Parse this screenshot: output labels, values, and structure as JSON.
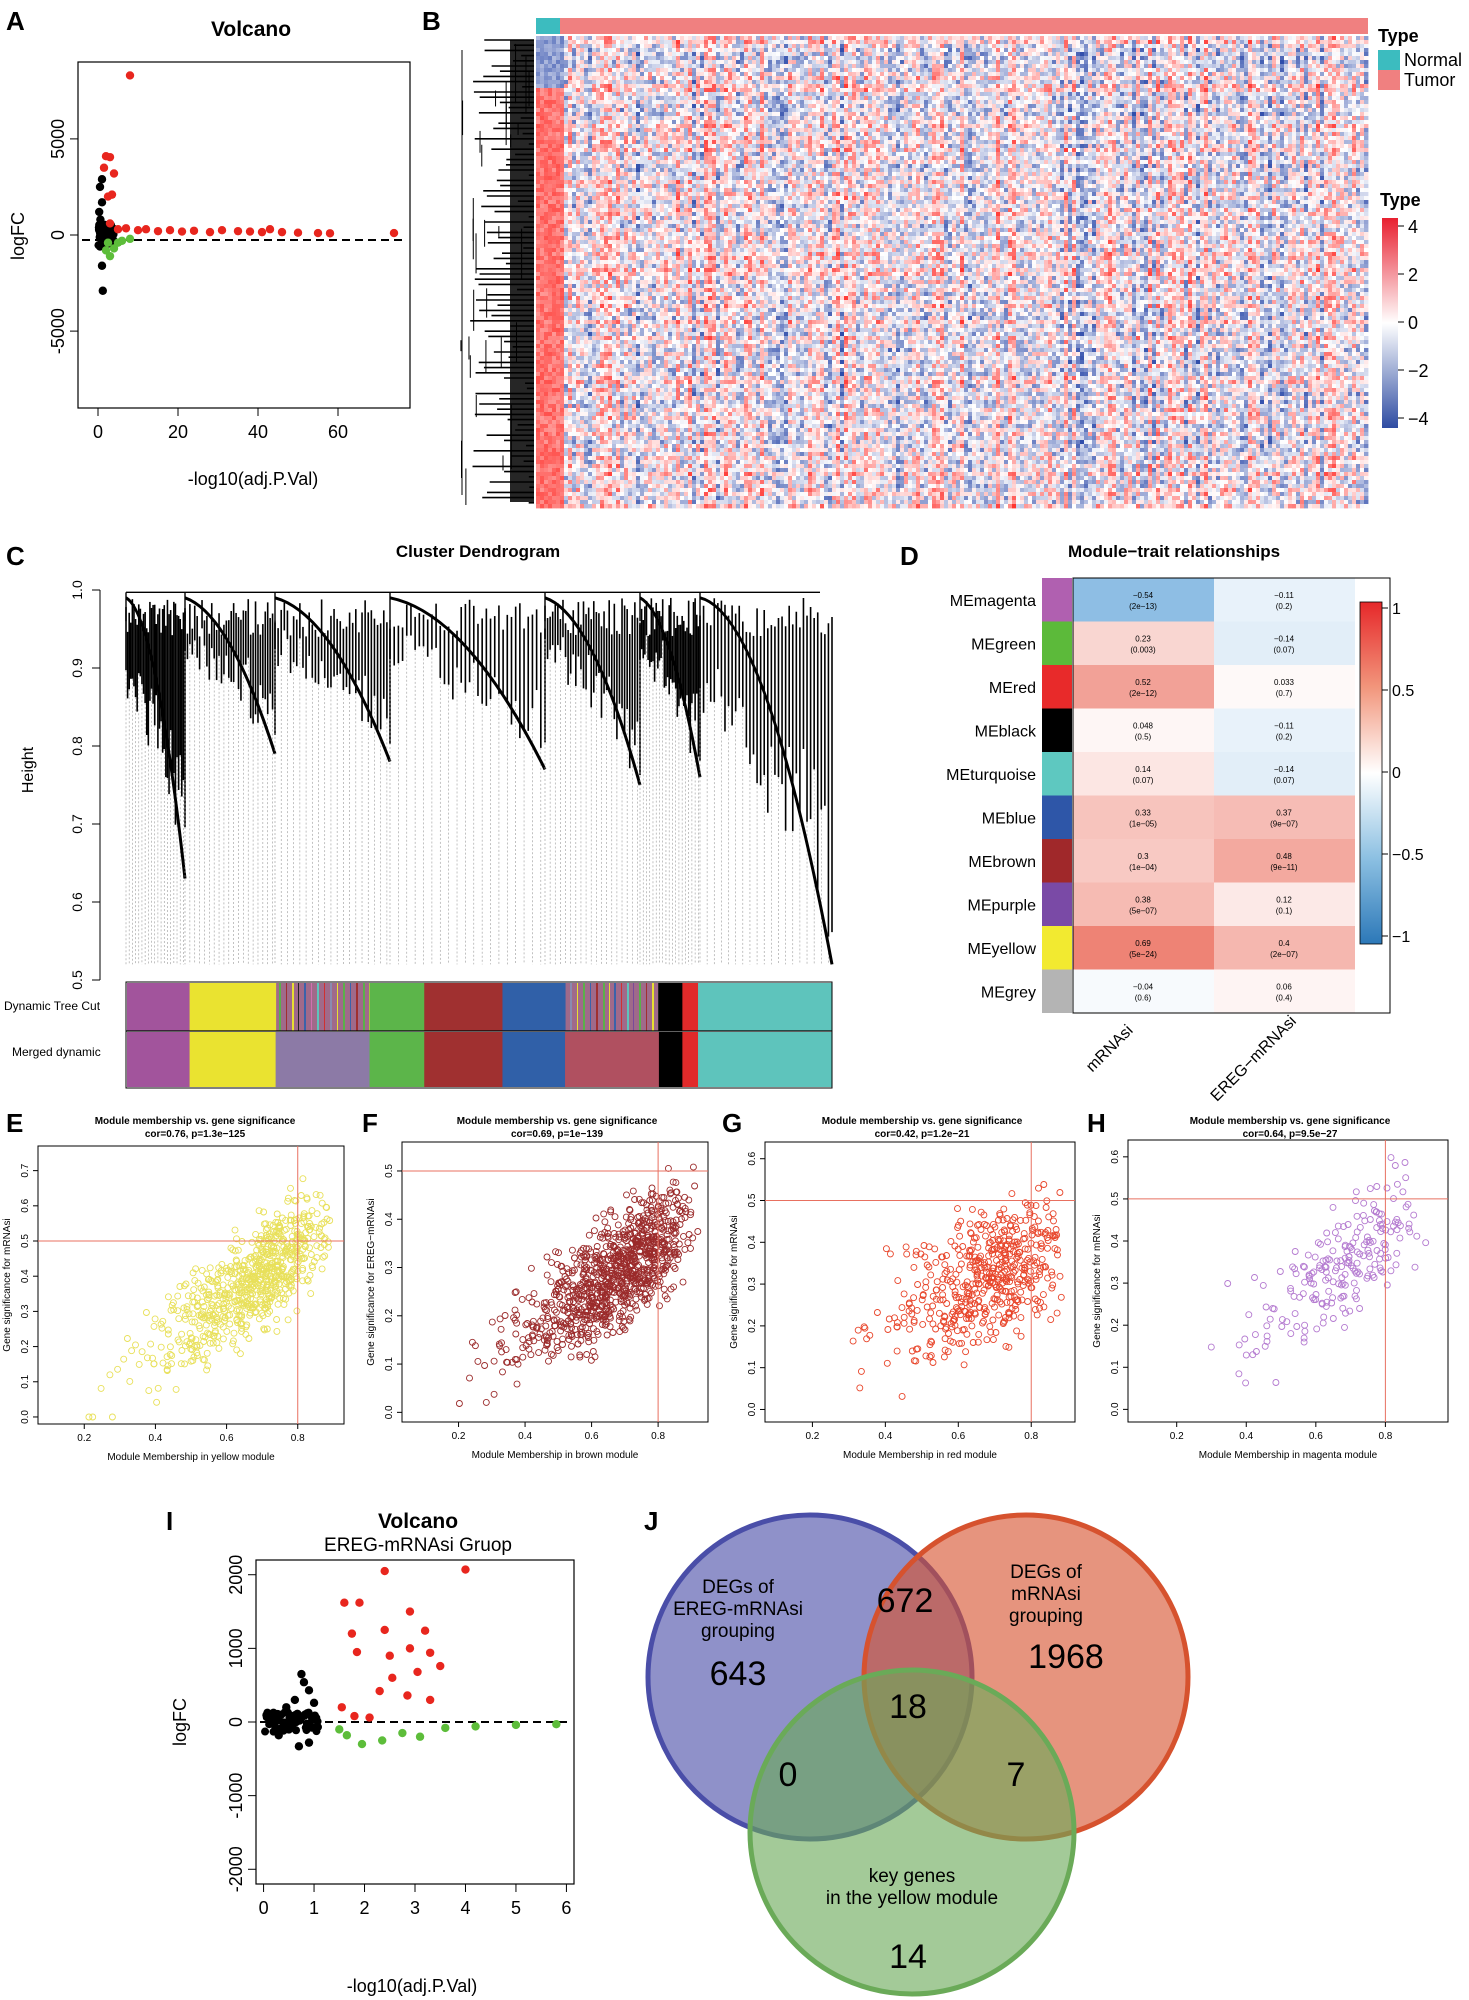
{
  "panel_labels": [
    "A",
    "B",
    "C",
    "D",
    "E",
    "F",
    "G",
    "H",
    "I",
    "J"
  ],
  "colors": {
    "red": "#e8261e",
    "green": "#5dbd3a",
    "black": "#000000",
    "normal": "#3cbcbf",
    "tumor": "#f08080",
    "heat_low": "#2b4fa2",
    "heat_mid": "#ffffff",
    "heat_high": "#e83030",
    "scatter_yellow": "#e8e05a",
    "scatter_brown": "#9b2b2b",
    "scatter_red": "#e8452a",
    "scatter_magenta": "#b47ad0",
    "venn_blue": "#4a4ea8",
    "venn_orange": "#d6522e",
    "venn_green": "#6aaa58"
  },
  "chart_data": [
    {
      "id": "A",
      "type": "scatter",
      "title": "Volcano",
      "xlabel": "-log10(adj.P.Val)",
      "ylabel": "logFC",
      "xlim": [
        -5,
        78
      ],
      "ylim": [
        -9000,
        9000
      ],
      "xticks": [
        "0",
        "20",
        "40",
        "60"
      ],
      "xtick_values": [
        0,
        20,
        40,
        60
      ],
      "yticks": [
        "-5000",
        "0",
        "5000"
      ],
      "ytick_values": [
        -5000,
        0,
        5000
      ],
      "points": [
        {
          "x": 8,
          "y": 8300,
          "c": "red"
        },
        {
          "x": 2,
          "y": 4100,
          "c": "red"
        },
        {
          "x": 3,
          "y": 4050,
          "c": "red"
        },
        {
          "x": 1.5,
          "y": 3500,
          "c": "red"
        },
        {
          "x": 4,
          "y": 3200,
          "c": "red"
        },
        {
          "x": 2.5,
          "y": 2000,
          "c": "red"
        },
        {
          "x": 3.5,
          "y": 2100,
          "c": "red"
        },
        {
          "x": 1,
          "y": 2900,
          "c": "black"
        },
        {
          "x": 0.5,
          "y": 2500,
          "c": "black"
        },
        {
          "x": 1,
          "y": 1700,
          "c": "black"
        },
        {
          "x": 0.3,
          "y": 1200,
          "c": "black"
        },
        {
          "x": 0.6,
          "y": 800,
          "c": "black"
        },
        {
          "x": 1,
          "y": -1600,
          "c": "black"
        },
        {
          "x": 1.2,
          "y": -2900,
          "c": "black"
        },
        {
          "x": 0.5,
          "y": -600,
          "c": "black"
        },
        {
          "x": 2,
          "y": -800,
          "c": "green"
        },
        {
          "x": 3,
          "y": -1100,
          "c": "green"
        },
        {
          "x": 4,
          "y": -700,
          "c": "green"
        },
        {
          "x": 5,
          "y": -400,
          "c": "green"
        },
        {
          "x": 2.5,
          "y": -400,
          "c": "green"
        },
        {
          "x": 6,
          "y": -300,
          "c": "green"
        },
        {
          "x": 8,
          "y": -200,
          "c": "green"
        },
        {
          "x": 3,
          "y": 600,
          "c": "red"
        },
        {
          "x": 5,
          "y": 300,
          "c": "red"
        },
        {
          "x": 7,
          "y": 350,
          "c": "red"
        },
        {
          "x": 10,
          "y": 250,
          "c": "red"
        },
        {
          "x": 12,
          "y": 300,
          "c": "red"
        },
        {
          "x": 15,
          "y": 200,
          "c": "red"
        },
        {
          "x": 18,
          "y": 250,
          "c": "red"
        },
        {
          "x": 21,
          "y": 180,
          "c": "red"
        },
        {
          "x": 24,
          "y": 220,
          "c": "red"
        },
        {
          "x": 28,
          "y": 150,
          "c": "red"
        },
        {
          "x": 31,
          "y": 250,
          "c": "red"
        },
        {
          "x": 35,
          "y": 200,
          "c": "red"
        },
        {
          "x": 38,
          "y": 180,
          "c": "red"
        },
        {
          "x": 41,
          "y": 150,
          "c": "red"
        },
        {
          "x": 43,
          "y": 300,
          "c": "red"
        },
        {
          "x": 46,
          "y": 150,
          "c": "red"
        },
        {
          "x": 50,
          "y": 120,
          "c": "red"
        },
        {
          "x": 55,
          "y": 100,
          "c": "red"
        },
        {
          "x": 58,
          "y": 90,
          "c": "red"
        },
        {
          "x": 74,
          "y": 100,
          "c": "red"
        }
      ]
    },
    {
      "id": "B",
      "type": "heatmap",
      "legend_title": "Type",
      "legend_items": [
        "Normal",
        "Tumor"
      ],
      "scale_title": "Type",
      "scale_ticks": [
        "4",
        "2",
        "0",
        "−2",
        "−4"
      ]
    },
    {
      "id": "C",
      "type": "dendrogram",
      "title": "Cluster Dendrogram",
      "ylabel": "Height",
      "ylim": [
        0.5,
        1.0
      ],
      "yticks": [
        "1.0",
        "0.9",
        "0.8",
        "0.7",
        "0.6",
        "0.5"
      ],
      "row_labels": [
        "Dynamic Tree Cut",
        "Merged dynamic"
      ],
      "merged_modules": [
        {
          "color": "#a2549c",
          "w": 8
        },
        {
          "color": "#eae330",
          "w": 11
        },
        {
          "color": "#8c7aa6",
          "w": 12
        },
        {
          "color": "#5cb54a",
          "w": 7
        },
        {
          "color": "#a03030",
          "w": 6
        },
        {
          "color": "#a03030",
          "w": 4
        },
        {
          "color": "#3060a8",
          "w": 8
        },
        {
          "color": "#b05060",
          "w": 12
        },
        {
          "color": "#000000",
          "w": 3
        },
        {
          "color": "#e02a2a",
          "w": 2
        },
        {
          "color": "#5ec4bc",
          "w": 17
        }
      ]
    },
    {
      "id": "D",
      "type": "heatmap",
      "title": "Module−trait relationships",
      "columns": [
        "mRNAsi",
        "EREG−mRNAsi"
      ],
      "scale_ticks": [
        "1",
        "0.5",
        "0",
        "−0.5",
        "−1"
      ],
      "rows": [
        {
          "module": "MEmagenta",
          "color": "#b060b0",
          "cells": [
            {
              "v": "−0.54",
              "p": "(2e−13)",
              "r": -0.54
            },
            {
              "v": "−0.11",
              "p": "(0.2)",
              "r": -0.11
            }
          ]
        },
        {
          "module": "MEgreen",
          "color": "#5cba3a",
          "cells": [
            {
              "v": "0.23",
              "p": "(0.003)",
              "r": 0.23
            },
            {
              "v": "−0.14",
              "p": "(0.07)",
              "r": -0.14
            }
          ]
        },
        {
          "module": "MEred",
          "color": "#e82a2a",
          "cells": [
            {
              "v": "0.52",
              "p": "(2e−12)",
              "r": 0.52
            },
            {
              "v": "0.033",
              "p": "(0.7)",
              "r": 0.033
            }
          ]
        },
        {
          "module": "MEblack",
          "color": "#000000",
          "cells": [
            {
              "v": "0.048",
              "p": "(0.5)",
              "r": 0.048
            },
            {
              "v": "−0.11",
              "p": "(0.2)",
              "r": -0.11
            }
          ]
        },
        {
          "module": "MEturquoise",
          "color": "#5ec8c0",
          "cells": [
            {
              "v": "0.14",
              "p": "(0.07)",
              "r": 0.14
            },
            {
              "v": "−0.14",
              "p": "(0.07)",
              "r": -0.14
            }
          ]
        },
        {
          "module": "MEblue",
          "color": "#2e56a8",
          "cells": [
            {
              "v": "0.33",
              "p": "(1e−05)",
              "r": 0.33
            },
            {
              "v": "0.37",
              "p": "(9e−07)",
              "r": 0.37
            }
          ]
        },
        {
          "module": "MEbrown",
          "color": "#a0282a",
          "cells": [
            {
              "v": "0.3",
              "p": "(1e−04)",
              "r": 0.3
            },
            {
              "v": "0.48",
              "p": "(9e−11)",
              "r": 0.48
            }
          ]
        },
        {
          "module": "MEpurple",
          "color": "#7a4aa6",
          "cells": [
            {
              "v": "0.38",
              "p": "(5e−07)",
              "r": 0.38
            },
            {
              "v": "0.12",
              "p": "(0.1)",
              "r": 0.12
            }
          ]
        },
        {
          "module": "MEyellow",
          "color": "#f2ea30",
          "cells": [
            {
              "v": "0.69",
              "p": "(5e−24)",
              "r": 0.69
            },
            {
              "v": "0.4",
              "p": "(2e−07)",
              "r": 0.4
            }
          ]
        },
        {
          "module": "MEgrey",
          "color": "#b4b4b4",
          "cells": [
            {
              "v": "−0.04",
              "p": "(0.6)",
              "r": -0.04
            },
            {
              "v": "0.06",
              "p": "(0.4)",
              "r": 0.06
            }
          ]
        }
      ]
    },
    {
      "id": "E",
      "type": "scatter",
      "title": "Module membership vs. gene significance",
      "subtitle": "cor=0.76, p=1.3e−125",
      "xlabel": "Module Membership in yellow module",
      "ylabel": "Gene significance for  mRNAsi",
      "xlim": [
        0.07,
        0.93
      ],
      "ylim": [
        -0.02,
        0.77
      ],
      "xticks": [
        0.2,
        0.4,
        0.6,
        0.8
      ],
      "yticks": [
        0.0,
        0.1,
        0.2,
        0.3,
        0.4,
        0.5,
        0.6,
        0.7
      ],
      "refline": {
        "x": 0.8,
        "y": 0.5
      },
      "color": "scatter_yellow",
      "cloud": {
        "n": 700,
        "x0": 0.12,
        "x1": 0.9,
        "slope": 0.72,
        "intercept": -0.1,
        "noise": 0.1,
        "seed": 11
      }
    },
    {
      "id": "F",
      "type": "scatter",
      "title": "Module membership vs. gene significance",
      "subtitle": "cor=0.69, p=1e−139",
      "xlabel": "Module Membership in brown module",
      "ylabel": "Gene significance for  EREG−mRNAsi",
      "xlim": [
        0.03,
        0.95
      ],
      "ylim": [
        -0.02,
        0.56
      ],
      "xticks": [
        0.2,
        0.4,
        0.6,
        0.8
      ],
      "yticks": [
        0.0,
        0.1,
        0.2,
        0.3,
        0.4,
        0.5
      ],
      "refline": {
        "x": 0.8,
        "y": 0.5
      },
      "color": "scatter_brown",
      "cloud": {
        "n": 950,
        "x0": 0.1,
        "x1": 0.92,
        "slope": 0.46,
        "intercept": -0.02,
        "noise": 0.08,
        "seed": 23
      }
    },
    {
      "id": "G",
      "type": "scatter",
      "title": "Module membership vs. gene significance",
      "subtitle": "cor=0.42, p=1.2e−21",
      "xlabel": "Module Membership in red module",
      "ylabel": "Gene significance for  mRNAsi",
      "xlim": [
        0.07,
        0.92
      ],
      "ylim": [
        -0.03,
        0.64
      ],
      "xticks": [
        0.2,
        0.4,
        0.6,
        0.8
      ],
      "yticks": [
        0.0,
        0.1,
        0.2,
        0.3,
        0.4,
        0.5,
        0.6
      ],
      "refline": {
        "x": 0.8,
        "y": 0.5
      },
      "color": "scatter_red",
      "cloud": {
        "n": 520,
        "x0": 0.12,
        "x1": 0.9,
        "slope": 0.36,
        "intercept": 0.08,
        "noise": 0.11,
        "seed": 37
      }
    },
    {
      "id": "H",
      "type": "scatter",
      "title": "Module membership vs. gene significance",
      "subtitle": "cor=0.64, p=9.5e−27",
      "xlabel": "Module Membership in magenta module",
      "ylabel": "Gene significance for  mRNAsi",
      "xlim": [
        0.06,
        0.98
      ],
      "ylim": [
        -0.03,
        0.64
      ],
      "xticks": [
        0.2,
        0.4,
        0.6,
        0.8
      ],
      "yticks": [
        0.0,
        0.1,
        0.2,
        0.3,
        0.4,
        0.5,
        0.6
      ],
      "refline": {
        "x": 0.8,
        "y": 0.5
      },
      "color": "scatter_magenta",
      "cloud": {
        "n": 220,
        "x0": 0.1,
        "x1": 0.95,
        "slope": 0.58,
        "intercept": -0.05,
        "noise": 0.1,
        "seed": 53
      }
    },
    {
      "id": "I",
      "type": "scatter",
      "title": "Volcano",
      "subtitle": "EREG-mRNAsi Gruop",
      "xlabel": "-log10(adj.P.Val)",
      "ylabel": "logFC",
      "xlim": [
        -0.15,
        6.15
      ],
      "ylim": [
        -2200,
        2200
      ],
      "xticks": [
        "0",
        "1",
        "2",
        "3",
        "4",
        "5",
        "6"
      ],
      "xtick_values": [
        0,
        1,
        2,
        3,
        4,
        5,
        6
      ],
      "yticks": [
        "-2000",
        "-1000",
        "0",
        "1000",
        "2000"
      ],
      "ytick_values": [
        -2000,
        -1000,
        0,
        1000,
        2000
      ],
      "points": [
        {
          "x": 1.6,
          "y": 1620,
          "c": "red"
        },
        {
          "x": 1.9,
          "y": 1620,
          "c": "red"
        },
        {
          "x": 2.4,
          "y": 2050,
          "c": "red"
        },
        {
          "x": 2.9,
          "y": 1500,
          "c": "red"
        },
        {
          "x": 3.2,
          "y": 1240,
          "c": "red"
        },
        {
          "x": 2.4,
          "y": 1250,
          "c": "red"
        },
        {
          "x": 1.75,
          "y": 1200,
          "c": "red"
        },
        {
          "x": 1.85,
          "y": 950,
          "c": "red"
        },
        {
          "x": 2.5,
          "y": 900,
          "c": "red"
        },
        {
          "x": 2.9,
          "y": 1000,
          "c": "red"
        },
        {
          "x": 3.3,
          "y": 940,
          "c": "red"
        },
        {
          "x": 3.5,
          "y": 760,
          "c": "red"
        },
        {
          "x": 3.05,
          "y": 680,
          "c": "red"
        },
        {
          "x": 2.55,
          "y": 600,
          "c": "red"
        },
        {
          "x": 2.3,
          "y": 420,
          "c": "red"
        },
        {
          "x": 2.85,
          "y": 360,
          "c": "red"
        },
        {
          "x": 3.3,
          "y": 300,
          "c": "red"
        },
        {
          "x": 4.0,
          "y": 2070,
          "c": "red"
        },
        {
          "x": 1.55,
          "y": 200,
          "c": "red"
        },
        {
          "x": 1.8,
          "y": 80,
          "c": "red"
        },
        {
          "x": 2.1,
          "y": 60,
          "c": "red"
        },
        {
          "x": 0.75,
          "y": 650,
          "c": "black"
        },
        {
          "x": 0.8,
          "y": 540,
          "c": "black"
        },
        {
          "x": 0.9,
          "y": 430,
          "c": "black"
        },
        {
          "x": 0.62,
          "y": 300,
          "c": "black"
        },
        {
          "x": 0.45,
          "y": 200,
          "c": "black"
        },
        {
          "x": 1.0,
          "y": 260,
          "c": "black"
        },
        {
          "x": 0.7,
          "y": -330,
          "c": "black"
        },
        {
          "x": 0.9,
          "y": -280,
          "c": "black"
        },
        {
          "x": 0.3,
          "y": -180,
          "c": "black"
        },
        {
          "x": 1.65,
          "y": -180,
          "c": "green"
        },
        {
          "x": 1.95,
          "y": -300,
          "c": "green"
        },
        {
          "x": 2.35,
          "y": -250,
          "c": "green"
        },
        {
          "x": 2.75,
          "y": -150,
          "c": "green"
        },
        {
          "x": 3.1,
          "y": -200,
          "c": "green"
        },
        {
          "x": 3.6,
          "y": -80,
          "c": "green"
        },
        {
          "x": 4.2,
          "y": -60,
          "c": "green"
        },
        {
          "x": 5.0,
          "y": -40,
          "c": "green"
        },
        {
          "x": 5.8,
          "y": -30,
          "c": "green"
        },
        {
          "x": 1.5,
          "y": -100,
          "c": "green"
        }
      ]
    },
    {
      "id": "J",
      "type": "venn",
      "sets": [
        {
          "name": "DEGs of EREG-mRNAsi grouping",
          "lines": [
            "DEGs of",
            "EREG-mRNAsi",
            "grouping"
          ],
          "color": "venn_blue"
        },
        {
          "name": "DEGs of mRNAsi grouping",
          "lines": [
            "DEGs of",
            "mRNAsi",
            "grouping"
          ],
          "color": "venn_orange"
        },
        {
          "name": "key genes in the yellow module",
          "lines": [
            "key genes",
            "in the yellow module"
          ],
          "color": "venn_green"
        }
      ],
      "regions": {
        "A_only": "643",
        "B_only": "1968",
        "C_only": "14",
        "AB": "672",
        "AC": "0",
        "BC": "7",
        "ABC": "18"
      }
    }
  ]
}
